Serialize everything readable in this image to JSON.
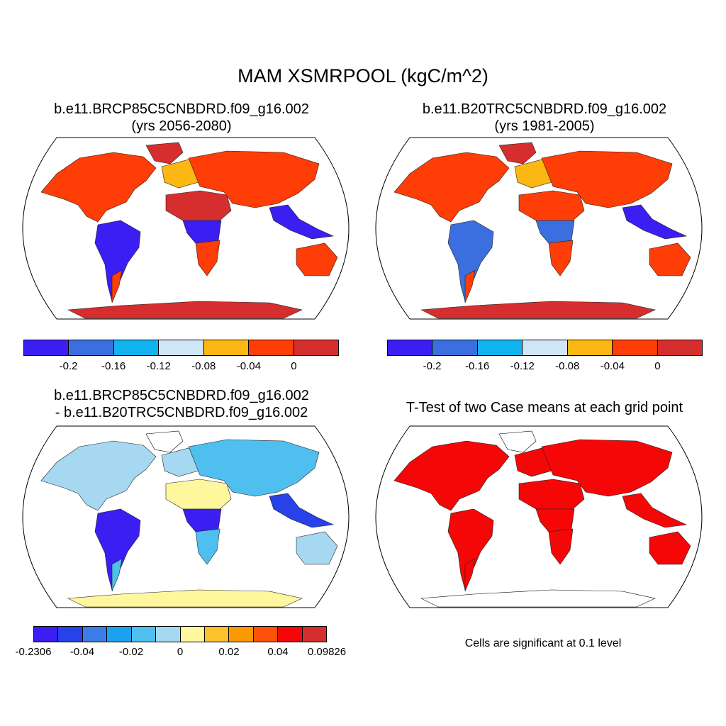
{
  "figure": {
    "title": "MAM XSMRPOOL (kgC/m^2)"
  },
  "panels": [
    {
      "title_line1": "b.e11.BRCP85C5CNBDRD.f09_g16.002",
      "title_line2": "(yrs 2056-2080)",
      "map_scheme": "future"
    },
    {
      "title_line1": "b.e11.B20TRC5CNBDRD.f09_g16.002",
      "title_line2": "(yrs 1981-2005)",
      "map_scheme": "historical"
    },
    {
      "title_line1": "b.e11.BRCP85C5CNBDRD.f09_g16.002",
      "title_line2": "- b.e11.B20TRC5CNBDRD.f09_g16.002",
      "map_scheme": "difference"
    },
    {
      "title_line1": "T-Test of two Case means at each grid point",
      "map_scheme": "significance",
      "note": "Cells are significant at 0.1 level"
    }
  ],
  "colorbars": {
    "levels": {
      "colors": [
        "#3b1ef2",
        "#3b6fe0",
        "#12b4ef",
        "#cfe6f7",
        "#fcb713",
        "#ff3d06",
        "#d62e2e"
      ],
      "ticks": [
        "-0.2",
        "-0.16",
        "-0.12",
        "-0.08",
        "-0.04",
        "0"
      ]
    },
    "difference": {
      "colors": [
        "#3b1ef2",
        "#2642e8",
        "#3b7ee8",
        "#1ba2ef",
        "#4ebfef",
        "#a7d8f2",
        "#fff79e",
        "#fcc22a",
        "#fc9a06",
        "#ff5208",
        "#f50707",
        "#d62e2e"
      ],
      "ticks": [
        "-0.2306",
        "-0.04",
        "-0.02",
        "0",
        "0.02",
        "0.04",
        "0.09826"
      ]
    }
  },
  "land_colors": {
    "future": {
      "north": "#ff3d06",
      "europe": "#fcb713",
      "tropics": "#3b1ef2",
      "southern": "#ff3d06",
      "africa_south": "#ff3d06",
      "australia": "#ff3d06",
      "sahara": "#d62e2e",
      "antarctica": "#d62e2e",
      "greenland": "#d62e2e",
      "asia": "#ff3d06",
      "se_asia": "#3b1ef2"
    },
    "historical": {
      "north": "#ff3d06",
      "europe": "#fcb713",
      "tropics": "#3b6fe0",
      "southern": "#ff3d06",
      "africa_south": "#ff3d06",
      "australia": "#ff3d06",
      "sahara": "#ff3d06",
      "antarctica": "#d62e2e",
      "greenland": "#d62e2e",
      "asia": "#ff3d06",
      "se_asia": "#3b1ef2"
    },
    "difference": {
      "north": "#a7d8f2",
      "europe": "#a7d8f2",
      "tropics": "#3b1ef2",
      "southern": "#4ebfef",
      "africa_south": "#4ebfef",
      "australia": "#a7d8f2",
      "sahara": "#fff79e",
      "antarctica": "#fff79e",
      "greenland": "#ffffff",
      "asia": "#4ebfef",
      "se_asia": "#2642e8"
    },
    "significance": {
      "north": "#f50707",
      "europe": "#f50707",
      "tropics": "#f50707",
      "southern": "#f50707",
      "africa_south": "#f50707",
      "australia": "#f50707",
      "sahara": "#f50707",
      "antarctica": "#ffffff",
      "greenland": "#ffffff",
      "asia": "#f50707",
      "se_asia": "#f50707"
    }
  }
}
